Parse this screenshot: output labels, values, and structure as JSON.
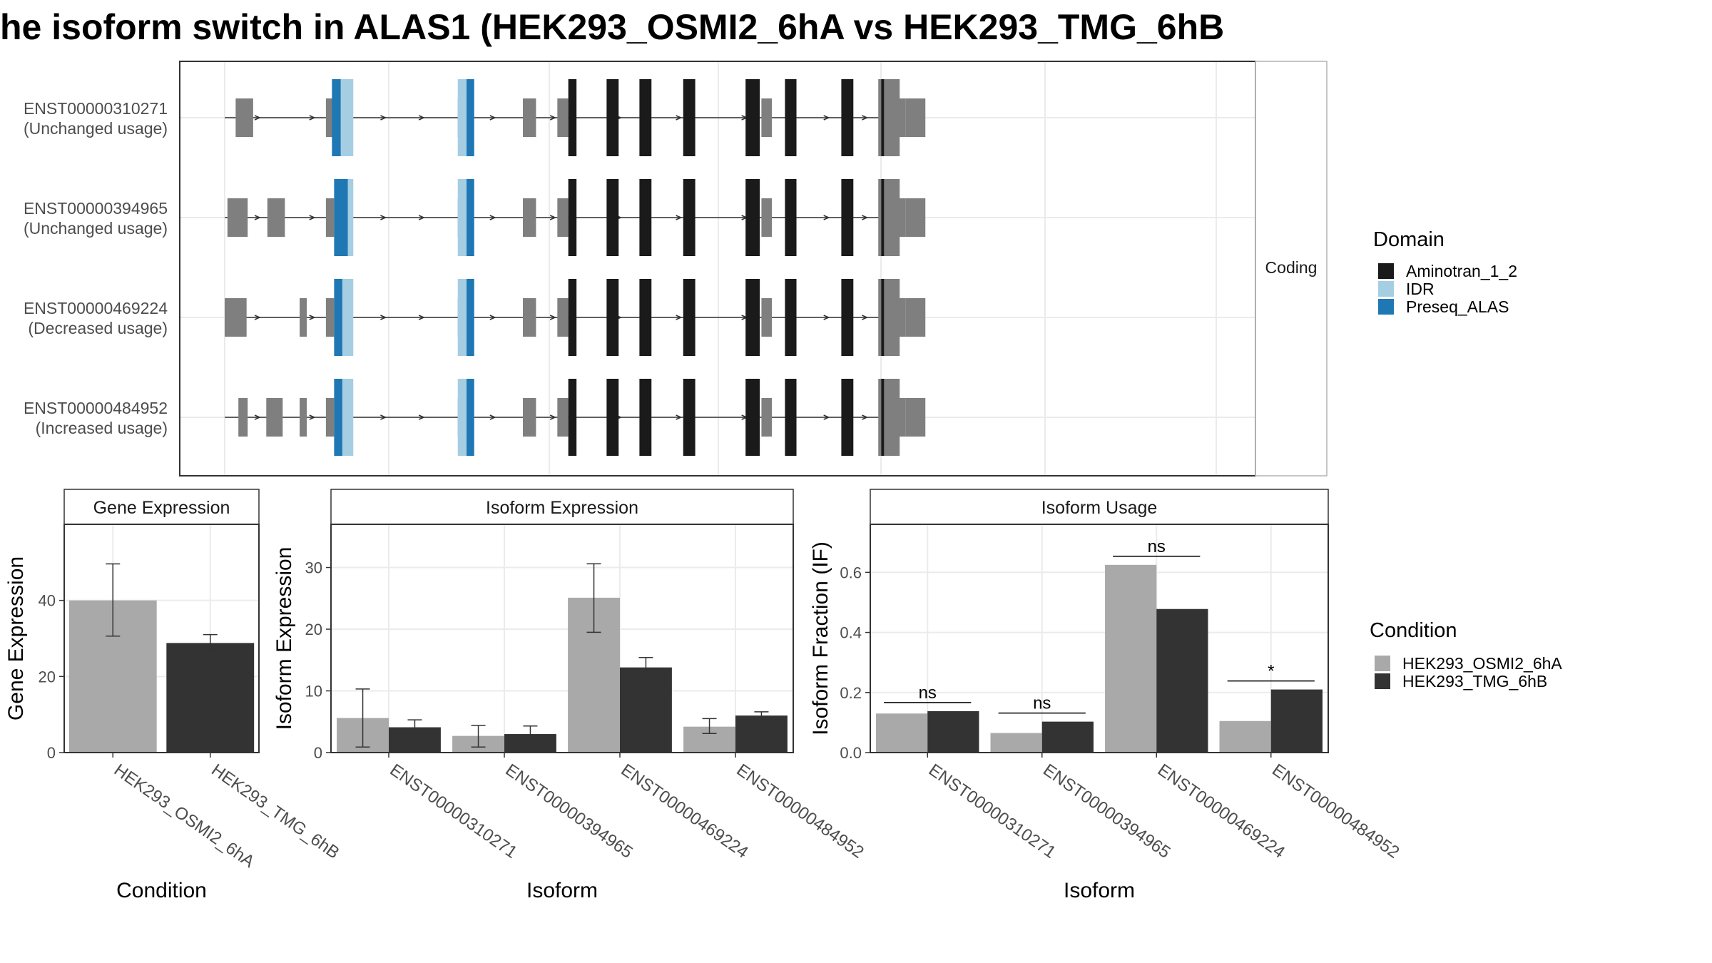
{
  "title": "he isoform switch in ALAS1 (HEK293_OSMI2_6hA vs HEK293_TMG_6hB",
  "colors": {
    "domain": {
      "Aminotran_1_2": "#1a1a1a",
      "IDR": "#a6cee3",
      "Preseq_ALAS": "#1f78b4"
    },
    "exon": "#7f7f7f",
    "condition": {
      "HEK293_OSMI2_6hA": "#a9a9a9",
      "HEK293_TMG_6hB": "#333333"
    },
    "grid": "#ebebeb",
    "panel_border": "#333333"
  },
  "structure": {
    "strip_label": "Coding",
    "xlim": [
      0,
      1
    ],
    "isoforms": [
      {
        "id": "ENST00000310271",
        "status": "(Unchanged usage)",
        "noncoding": [
          [
            0.02,
            0.052
          ],
          [
            0.185,
            0.204
          ],
          [
            0.426,
            0.442
          ],
          [
            0.545,
            0.569
          ],
          [
            0.608,
            0.628
          ],
          [
            0.981,
            1.0
          ],
          [
            0.981,
            1.0
          ]
        ],
        "coding": [
          [
            0.628,
            0.643
          ],
          [
            0.698,
            0.72
          ],
          [
            0.758,
            0.78
          ],
          [
            0.838,
            0.86
          ],
          [
            0.952,
            0.978
          ],
          [
            1.024,
            1.045
          ],
          [
            1.127,
            1.149
          ],
          [
            1.2,
            1.205
          ]
        ],
        "idr": [
          [
            0.204,
            0.235
          ],
          [
            0.426,
            0.442
          ]
        ],
        "preseq": [
          [
            0.196,
            0.212
          ],
          [
            0.442,
            0.456
          ]
        ]
      },
      {
        "id": "ENST00000394965",
        "status": "(Unchanged usage)",
        "noncoding": [
          [
            0.005,
            0.042
          ],
          [
            0.078,
            0.11
          ],
          [
            0.185,
            0.2
          ],
          [
            0.426,
            0.442
          ],
          [
            0.545,
            0.569
          ],
          [
            0.608,
            0.628
          ],
          [
            0.981,
            1.0
          ]
        ],
        "coding": [
          [
            0.628,
            0.643
          ],
          [
            0.698,
            0.72
          ],
          [
            0.758,
            0.78
          ],
          [
            0.838,
            0.86
          ],
          [
            0.952,
            0.978
          ],
          [
            1.024,
            1.045
          ],
          [
            1.127,
            1.149
          ],
          [
            1.2,
            1.205
          ]
        ],
        "idr": [
          [
            0.2,
            0.235
          ],
          [
            0.426,
            0.442
          ]
        ],
        "preseq": [
          [
            0.2,
            0.225
          ],
          [
            0.442,
            0.456
          ]
        ]
      },
      {
        "id": "ENST00000469224",
        "status": "(Decreased usage)",
        "noncoding": [
          [
            0.0,
            0.04
          ],
          [
            0.137,
            0.15
          ],
          [
            0.185,
            0.2
          ],
          [
            0.426,
            0.442
          ],
          [
            0.545,
            0.569
          ],
          [
            0.608,
            0.628
          ],
          [
            0.981,
            1.0
          ]
        ],
        "coding": [
          [
            0.628,
            0.643
          ],
          [
            0.698,
            0.72
          ],
          [
            0.758,
            0.78
          ],
          [
            0.838,
            0.86
          ],
          [
            0.952,
            0.978
          ],
          [
            1.024,
            1.045
          ],
          [
            1.127,
            1.149
          ],
          [
            1.2,
            1.205
          ]
        ],
        "idr": [
          [
            0.2,
            0.235
          ],
          [
            0.426,
            0.442
          ]
        ],
        "preseq": [
          [
            0.2,
            0.215
          ],
          [
            0.442,
            0.456
          ]
        ]
      },
      {
        "id": "ENST00000484952",
        "status": "(Increased usage)",
        "noncoding": [
          [
            0.025,
            0.042
          ],
          [
            0.076,
            0.106
          ],
          [
            0.137,
            0.15
          ],
          [
            0.185,
            0.2
          ],
          [
            0.426,
            0.442
          ],
          [
            0.545,
            0.569
          ],
          [
            0.608,
            0.628
          ],
          [
            0.981,
            1.0
          ]
        ],
        "coding": [
          [
            0.628,
            0.643
          ],
          [
            0.698,
            0.72
          ],
          [
            0.758,
            0.78
          ],
          [
            0.838,
            0.86
          ],
          [
            0.952,
            0.978
          ],
          [
            1.024,
            1.045
          ],
          [
            1.127,
            1.149
          ],
          [
            1.2,
            1.205
          ]
        ],
        "idr": [
          [
            0.2,
            0.235
          ],
          [
            0.426,
            0.442
          ]
        ],
        "preseq": [
          [
            0.2,
            0.215
          ],
          [
            0.442,
            0.456
          ]
        ]
      }
    ]
  },
  "legend_domain": {
    "title": "Domain",
    "items": [
      "Aminotran_1_2",
      "IDR",
      "Preseq_ALAS"
    ]
  },
  "legend_condition": {
    "title": "Condition",
    "items": [
      "HEK293_OSMI2_6hA",
      "HEK293_TMG_6hB"
    ]
  },
  "chart_data": [
    {
      "type": "bar",
      "panel_title": "Gene Expression",
      "xlabel": "Condition",
      "ylabel": "Gene Expression",
      "categories": [
        "HEK293_OSMI2_6hA",
        "HEK293_TMG_6hB"
      ],
      "values": [
        40,
        28.8
      ],
      "error": [
        [
          30.6,
          49.6
        ],
        [
          27.0,
          31.0
        ]
      ],
      "ylim": [
        0,
        60
      ],
      "yticks": [
        0,
        20,
        40
      ]
    },
    {
      "type": "bar",
      "panel_title": "Isoform Expression",
      "xlabel": "Isoform",
      "ylabel": "Isoform Expression",
      "categories": [
        "ENST00000310271",
        "ENST00000394965",
        "ENST00000469224",
        "ENST00000484952"
      ],
      "series": [
        {
          "name": "HEK293_OSMI2_6hA",
          "values": [
            5.6,
            2.7,
            25.1,
            4.2
          ],
          "error": [
            [
              0.9,
              10.3
            ],
            [
              0.9,
              4.4
            ],
            [
              19.5,
              30.6
            ],
            [
              3.1,
              5.5
            ]
          ]
        },
        {
          "name": "HEK293_TMG_6hB",
          "values": [
            4.1,
            3.0,
            13.8,
            6.0
          ],
          "error": [
            [
              2.8,
              5.3
            ],
            [
              1.8,
              4.3
            ],
            [
              12.4,
              15.4
            ],
            [
              5.4,
              6.6
            ]
          ]
        }
      ],
      "ylim": [
        0,
        37
      ],
      "yticks": [
        0,
        10,
        20,
        30
      ]
    },
    {
      "type": "bar",
      "panel_title": "Isoform Usage",
      "xlabel": "Isoform",
      "ylabel": "Isoform Fraction (IF)",
      "categories": [
        "ENST00000310271",
        "ENST00000394965",
        "ENST00000469224",
        "ENST00000484952"
      ],
      "series": [
        {
          "name": "HEK293_OSMI2_6hA",
          "values": [
            0.13,
            0.065,
            0.625,
            0.105
          ]
        },
        {
          "name": "HEK293_TMG_6hB",
          "values": [
            0.138,
            0.103,
            0.478,
            0.21
          ]
        }
      ],
      "significance": [
        "ns",
        "ns",
        "ns",
        "*"
      ],
      "ylim": [
        0,
        0.76
      ],
      "yticks": [
        0.0,
        0.2,
        0.4,
        0.6
      ],
      "ytick_labels": [
        "0.0",
        "0.2",
        "0.4",
        "0.6"
      ]
    }
  ]
}
